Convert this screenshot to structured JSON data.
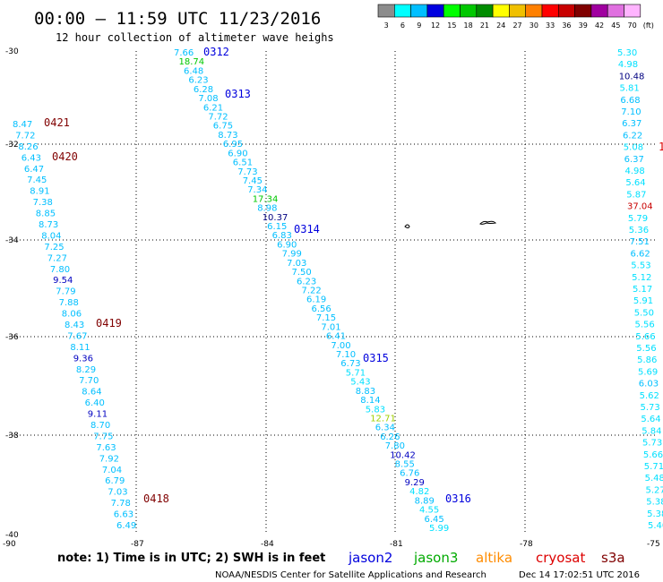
{
  "header": {
    "title": "00:00 – 11:59 UTC 11/23/2016",
    "subtitle": "12 hour collection of altimeter wave heighs"
  },
  "colorbar": {
    "unit_label": "(ft)",
    "bins": [
      {
        "label": "3",
        "color": "#8c8c8c"
      },
      {
        "label": "6",
        "color": "#00ffff"
      },
      {
        "label": "9",
        "color": "#00bfff"
      },
      {
        "label": "12",
        "color": "#0000e0"
      },
      {
        "label": "15",
        "color": "#00ff00"
      },
      {
        "label": "18",
        "color": "#00c800"
      },
      {
        "label": "21",
        "color": "#008c00"
      },
      {
        "label": "24",
        "color": "#ffff00"
      },
      {
        "label": "27",
        "color": "#f0c000"
      },
      {
        "label": "30",
        "color": "#ff8000"
      },
      {
        "label": "33",
        "color": "#ff0000"
      },
      {
        "label": "36",
        "color": "#c80000"
      },
      {
        "label": "39",
        "color": "#800000"
      },
      {
        "label": "42",
        "color": "#a000a0"
      },
      {
        "label": "45",
        "color": "#e070e0"
      },
      {
        "label": "70",
        "color": "#ffb4ff"
      }
    ]
  },
  "axes": {
    "lat_labels": [
      "-30",
      "-32",
      "-34",
      "-36",
      "-38",
      "-40"
    ],
    "lon_labels": [
      "-90",
      "-87",
      "-84",
      "-81",
      "-78",
      "-75"
    ]
  },
  "footer": {
    "note": "note:  1) Time is in UTC;  2) SWH is in feet",
    "satellites": [
      {
        "name": "jason2",
        "color": "#0000dd"
      },
      {
        "name": "jason3",
        "color": "#00aa00"
      },
      {
        "name": "altika",
        "color": "#ff8c00"
      },
      {
        "name": "cryosat",
        "color": "#dd0000"
      },
      {
        "name": "s3a",
        "color": "#800000"
      }
    ],
    "credit": "NOAA/NESDIS Center for Satellite Applications and Research",
    "timestamp": "Dec 14 17:02:51 UTC 2016"
  },
  "passes": [
    {
      "time_labels": [
        {
          "text": "0312",
          "color": "#0000dd"
        },
        {
          "text": "0313",
          "color": "#0000dd"
        },
        {
          "text": "0314",
          "color": "#0000dd"
        },
        {
          "text": "0315",
          "color": "#0000dd"
        },
        {
          "text": "0316",
          "color": "#0000dd"
        }
      ],
      "values": [
        {
          "text": "7.66",
          "color": "#00bfff"
        },
        {
          "text": "18.74",
          "color": "#00c800"
        },
        {
          "text": "6.48",
          "color": "#00bfff"
        },
        {
          "text": "6.23",
          "color": "#00bfff"
        },
        {
          "text": "6.28",
          "color": "#00bfff"
        },
        {
          "text": "7.08",
          "color": "#00bfff"
        },
        {
          "text": "6.21",
          "color": "#00bfff"
        },
        {
          "text": "7.72",
          "color": "#00bfff"
        },
        {
          "text": "6.75",
          "color": "#00bfff"
        },
        {
          "text": "8.73",
          "color": "#00bfff"
        },
        {
          "text": "6.95",
          "color": "#00bfff"
        },
        {
          "text": "6.90",
          "color": "#00bfff"
        },
        {
          "text": "6.51",
          "color": "#00bfff"
        },
        {
          "text": "7.73",
          "color": "#00bfff"
        },
        {
          "text": "7.45",
          "color": "#00bfff"
        },
        {
          "text": "7.34",
          "color": "#00bfff"
        },
        {
          "text": "17.34",
          "color": "#00c800"
        },
        {
          "text": "8.98",
          "color": "#00bfff"
        },
        {
          "text": "10.37",
          "color": "#000080"
        },
        {
          "text": "6.15",
          "color": "#00bfff"
        },
        {
          "text": "6.83",
          "color": "#00bfff"
        },
        {
          "text": "6.90",
          "color": "#00bfff"
        },
        {
          "text": "7.99",
          "color": "#00bfff"
        },
        {
          "text": "7.03",
          "color": "#00bfff"
        },
        {
          "text": "7.50",
          "color": "#00bfff"
        },
        {
          "text": "6.23",
          "color": "#00bfff"
        },
        {
          "text": "7.22",
          "color": "#00bfff"
        },
        {
          "text": "6.19",
          "color": "#00bfff"
        },
        {
          "text": "6.56",
          "color": "#00bfff"
        },
        {
          "text": "7.15",
          "color": "#00bfff"
        },
        {
          "text": "7.01",
          "color": "#00bfff"
        },
        {
          "text": "6.41",
          "color": "#00bfff"
        },
        {
          "text": "7.00",
          "color": "#00bfff"
        },
        {
          "text": "7.10",
          "color": "#00bfff"
        },
        {
          "text": "6.73",
          "color": "#00bfff"
        },
        {
          "text": "5.71",
          "color": "#00e0ff"
        },
        {
          "text": "5.43",
          "color": "#00e0ff"
        },
        {
          "text": "8.83",
          "color": "#00bfff"
        },
        {
          "text": "8.14",
          "color": "#00bfff"
        },
        {
          "text": "5.83",
          "color": "#00e0ff"
        },
        {
          "text": "12.71",
          "color": "#a0d000"
        },
        {
          "text": "6.34",
          "color": "#00bfff"
        },
        {
          "text": "6.26",
          "color": "#00bfff"
        },
        {
          "text": "7.80",
          "color": "#00bfff"
        },
        {
          "text": "10.42",
          "color": "#0000c0"
        },
        {
          "text": "8.55",
          "color": "#00bfff"
        },
        {
          "text": "6.76",
          "color": "#00bfff"
        },
        {
          "text": "9.29",
          "color": "#0000c0"
        },
        {
          "text": "4.82",
          "color": "#00e0ff"
        },
        {
          "text": "8.89",
          "color": "#00bfff"
        },
        {
          "text": "4.55",
          "color": "#00e0ff"
        },
        {
          "text": "6.45",
          "color": "#00bfff"
        },
        {
          "text": "5.99",
          "color": "#00e0ff"
        }
      ]
    },
    {
      "time_labels": [
        {
          "text": "0421",
          "color": "#800000"
        },
        {
          "text": "0420",
          "color": "#800000"
        },
        {
          "text": "0419",
          "color": "#800000"
        },
        {
          "text": "0418",
          "color": "#800000"
        }
      ],
      "values": [
        {
          "text": "8.47",
          "color": "#00bfff"
        },
        {
          "text": "7.72",
          "color": "#00bfff"
        },
        {
          "text": "8.26",
          "color": "#00bfff"
        },
        {
          "text": "6.43",
          "color": "#00bfff"
        },
        {
          "text": "6.47",
          "color": "#00bfff"
        },
        {
          "text": "7.45",
          "color": "#00bfff"
        },
        {
          "text": "8.91",
          "color": "#00bfff"
        },
        {
          "text": "7.38",
          "color": "#00bfff"
        },
        {
          "text": "8.85",
          "color": "#00bfff"
        },
        {
          "text": "8.73",
          "color": "#00bfff"
        },
        {
          "text": "8.04",
          "color": "#00bfff"
        },
        {
          "text": "7.25",
          "color": "#00bfff"
        },
        {
          "text": "7.27",
          "color": "#00bfff"
        },
        {
          "text": "7.80",
          "color": "#00bfff"
        },
        {
          "text": "9.54",
          "color": "#0000c0"
        },
        {
          "text": "7.79",
          "color": "#00bfff"
        },
        {
          "text": "7.88",
          "color": "#00bfff"
        },
        {
          "text": "8.06",
          "color": "#00bfff"
        },
        {
          "text": "8.43",
          "color": "#00bfff"
        },
        {
          "text": "7.67",
          "color": "#00bfff"
        },
        {
          "text": "8.11",
          "color": "#00bfff"
        },
        {
          "text": "9.36",
          "color": "#0000c0"
        },
        {
          "text": "8.29",
          "color": "#00bfff"
        },
        {
          "text": "7.70",
          "color": "#00bfff"
        },
        {
          "text": "8.64",
          "color": "#00bfff"
        },
        {
          "text": "6.40",
          "color": "#00bfff"
        },
        {
          "text": "9.11",
          "color": "#0000c0"
        },
        {
          "text": "8.70",
          "color": "#00bfff"
        },
        {
          "text": "7.75",
          "color": "#00bfff"
        },
        {
          "text": "7.63",
          "color": "#00bfff"
        },
        {
          "text": "7.92",
          "color": "#00bfff"
        },
        {
          "text": "7.04",
          "color": "#00bfff"
        },
        {
          "text": "6.79",
          "color": "#00bfff"
        },
        {
          "text": "7.03",
          "color": "#00bfff"
        },
        {
          "text": "7.78",
          "color": "#00bfff"
        },
        {
          "text": "6.63",
          "color": "#00bfff"
        },
        {
          "text": "6.49",
          "color": "#00bfff"
        }
      ]
    },
    {
      "time_labels": [],
      "values": [
        {
          "text": "5.30",
          "color": "#00e0ff"
        },
        {
          "text": "4.98",
          "color": "#00e0ff"
        },
        {
          "text": "10.48",
          "color": "#000080"
        },
        {
          "text": "5.81",
          "color": "#00e0ff"
        },
        {
          "text": "6.68",
          "color": "#00bfff"
        },
        {
          "text": "7.10",
          "color": "#00bfff"
        },
        {
          "text": "6.37",
          "color": "#00bfff"
        },
        {
          "text": "6.22",
          "color": "#00bfff"
        },
        {
          "text": "5.08",
          "color": "#00e0ff"
        },
        {
          "text": "6.37",
          "color": "#00bfff"
        },
        {
          "text": "4.98",
          "color": "#00e0ff"
        },
        {
          "text": "5.64",
          "color": "#00e0ff"
        },
        {
          "text": "5.87",
          "color": "#00e0ff"
        },
        {
          "text": "37.04",
          "color": "#c80000"
        },
        {
          "text": "5.79",
          "color": "#00e0ff"
        },
        {
          "text": "5.36",
          "color": "#00e0ff"
        },
        {
          "text": "7.51",
          "color": "#00bfff"
        },
        {
          "text": "6.62",
          "color": "#00bfff"
        },
        {
          "text": "5.53",
          "color": "#00e0ff"
        },
        {
          "text": "5.12",
          "color": "#00e0ff"
        },
        {
          "text": "5.17",
          "color": "#00e0ff"
        },
        {
          "text": "5.91",
          "color": "#00e0ff"
        },
        {
          "text": "5.50",
          "color": "#00e0ff"
        },
        {
          "text": "5.56",
          "color": "#00e0ff"
        },
        {
          "text": "5.66",
          "color": "#00e0ff"
        },
        {
          "text": "5.56",
          "color": "#00e0ff"
        },
        {
          "text": "5.86",
          "color": "#00e0ff"
        },
        {
          "text": "5.69",
          "color": "#00e0ff"
        },
        {
          "text": "6.03",
          "color": "#00bfff"
        },
        {
          "text": "5.62",
          "color": "#00e0ff"
        },
        {
          "text": "5.73",
          "color": "#00e0ff"
        },
        {
          "text": "5.64",
          "color": "#00e0ff"
        },
        {
          "text": "5.84",
          "color": "#00e0ff"
        },
        {
          "text": "5.73",
          "color": "#00e0ff"
        },
        {
          "text": "5.66",
          "color": "#00e0ff"
        },
        {
          "text": "5.71",
          "color": "#00e0ff"
        },
        {
          "text": "5.48",
          "color": "#00e0ff"
        },
        {
          "text": "5.27",
          "color": "#00e0ff"
        },
        {
          "text": "5.38",
          "color": "#00e0ff"
        },
        {
          "text": "5.38",
          "color": "#00e0ff"
        },
        {
          "text": "5.40",
          "color": "#00e0ff"
        }
      ]
    }
  ],
  "edge_mark": {
    "text": "1",
    "color": "#dd0000"
  }
}
